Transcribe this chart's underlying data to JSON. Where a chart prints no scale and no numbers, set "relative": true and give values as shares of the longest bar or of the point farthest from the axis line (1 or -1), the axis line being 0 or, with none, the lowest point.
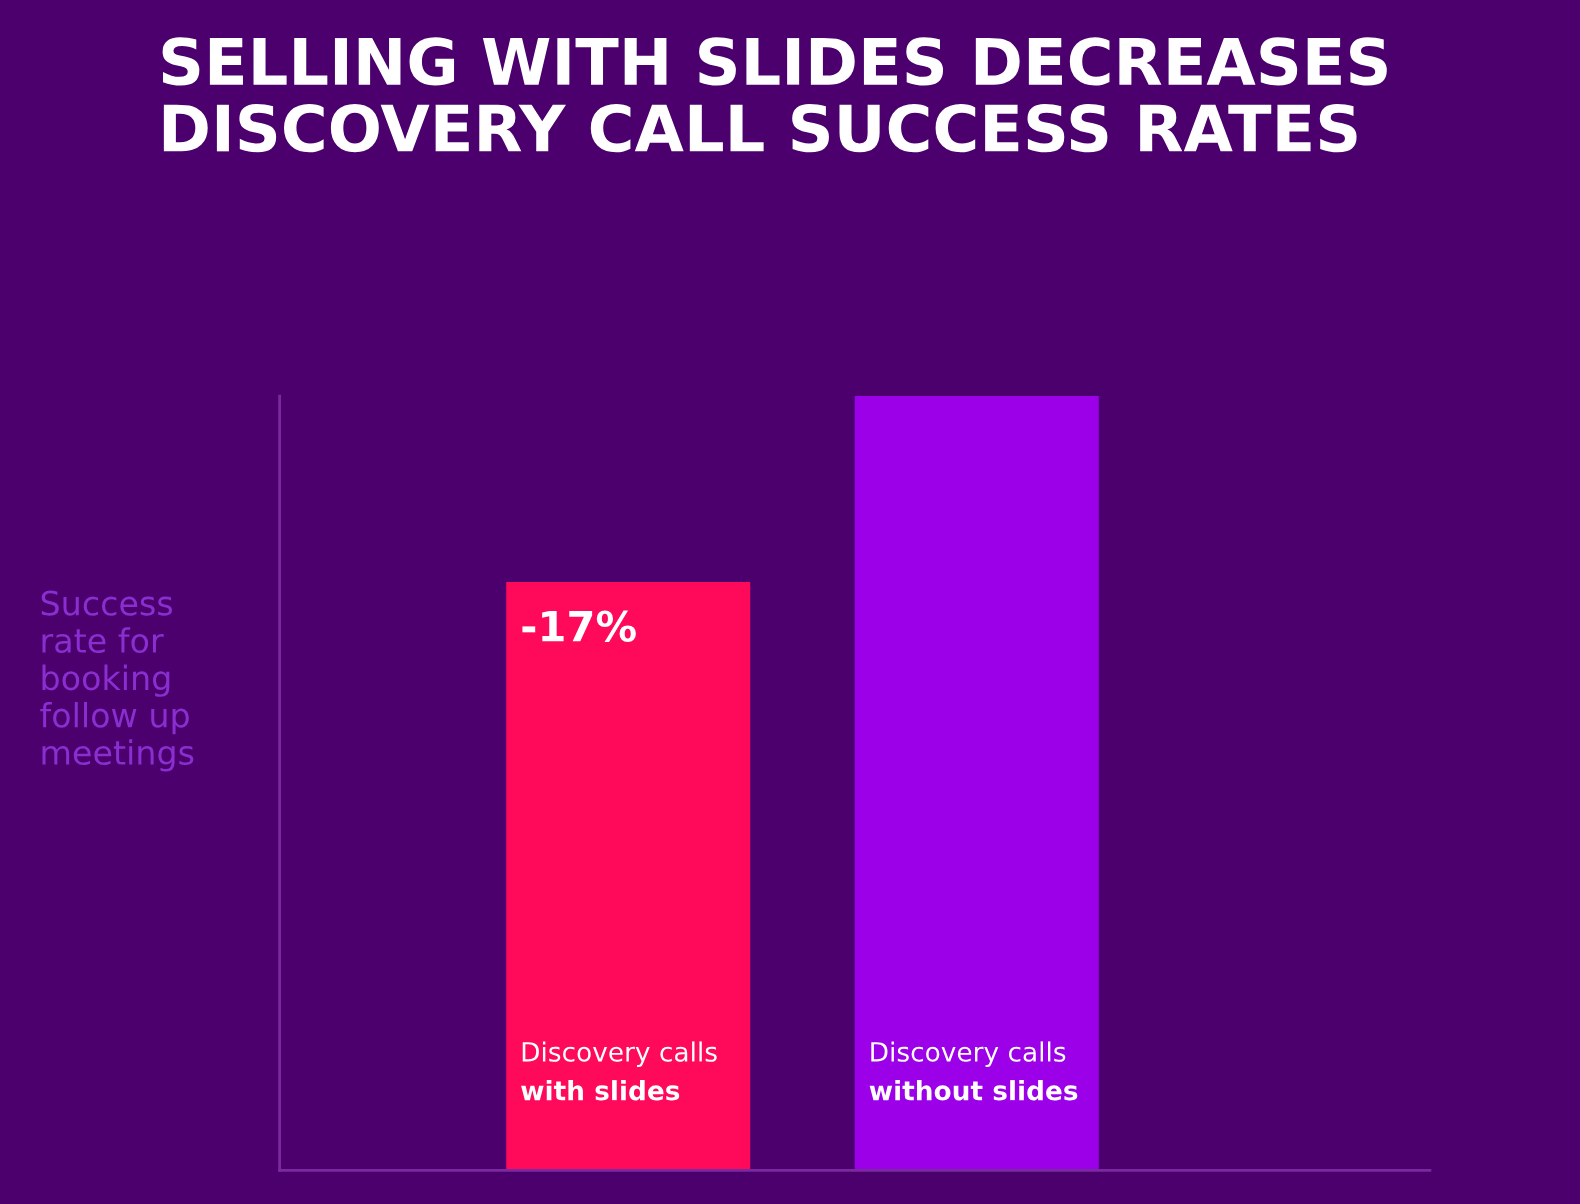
{
  "chart_data": {
    "type": "bar",
    "title": "SELLING WITH SLIDES DECREASES\nDISCOVERY CALL SUCCESS RATES",
    "ylabel": "Success\nrate for\nbooking\nfollow up\nmeetings",
    "categories": [
      "Discovery calls\nwith slides",
      "Discovery calls\nwithout slides"
    ],
    "values": [
      0.76,
      1
    ],
    "colors": [
      "#ff0a5a",
      "#9b00e8"
    ],
    "relative": true,
    "annotations": [
      {
        "text": "-17%",
        "x": "Discovery calls\nwith slides",
        "y": 0.76
      }
    ],
    "legend": false
  }
}
